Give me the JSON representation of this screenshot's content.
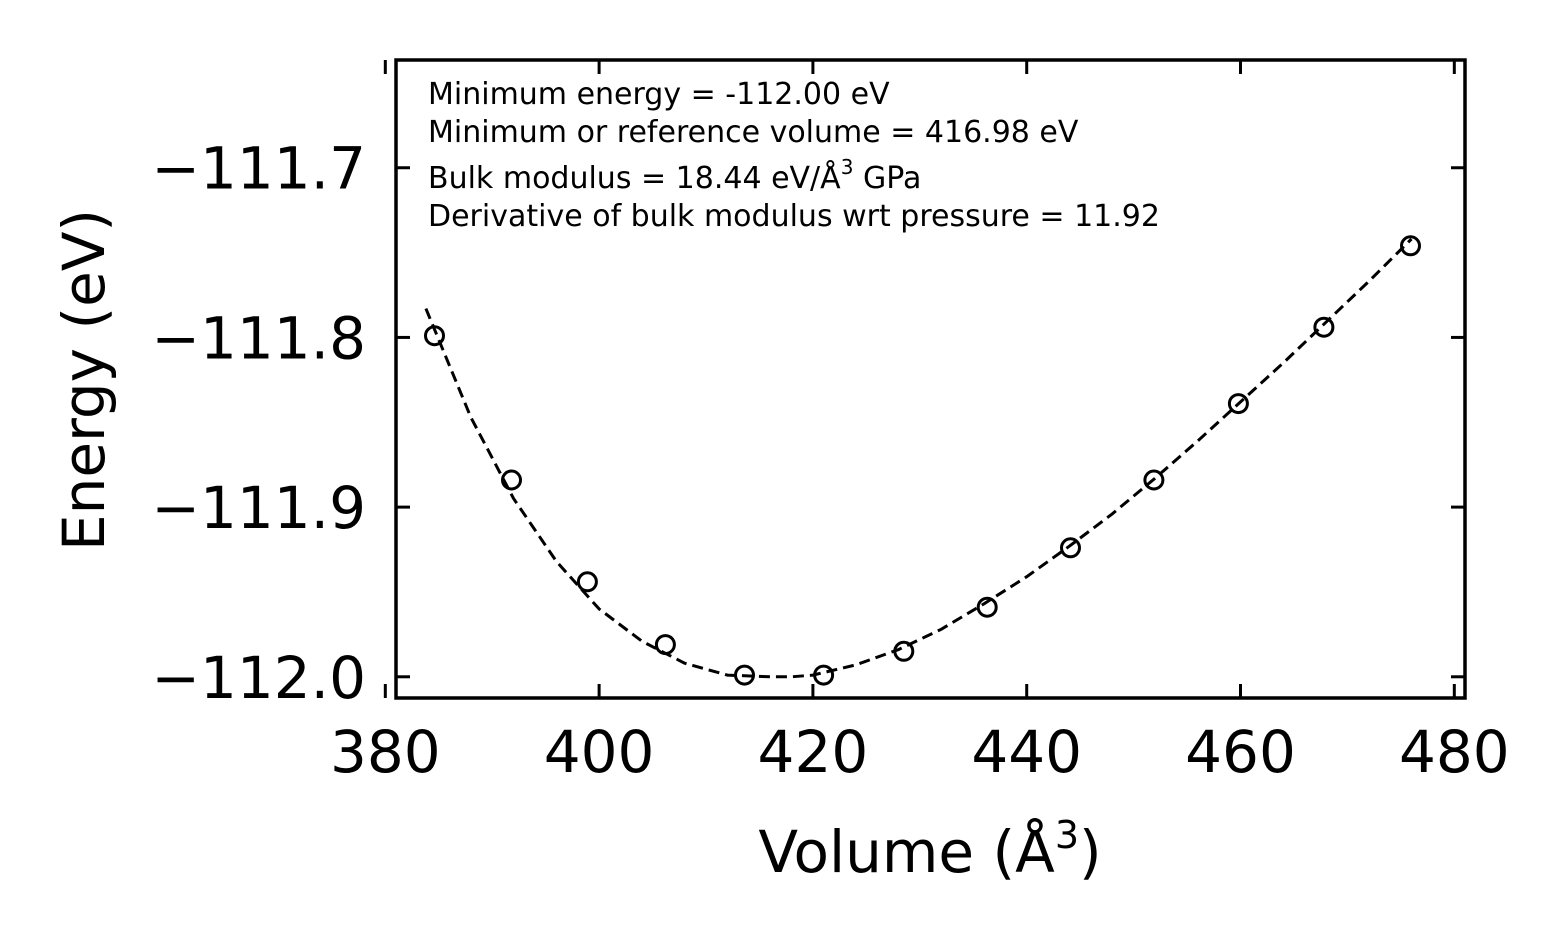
{
  "chart_data": {
    "type": "scatter",
    "xlabel": "Volume (Å",
    "xlabel_sup": "3",
    "xlabel_tail": ")",
    "ylabel": "Energy (eV)",
    "xlim": [
      381,
      481
    ],
    "ylim": [
      -112.0125,
      -111.6365
    ],
    "xticks": [
      380,
      400,
      420,
      440,
      460,
      480
    ],
    "xtick_labels": [
      "380",
      "400",
      "420",
      "440",
      "460",
      "480"
    ],
    "yticks": [
      -111.7,
      -111.8,
      -111.9,
      -112.0
    ],
    "ytick_labels": [
      "−111.7",
      "−111.8",
      "−111.9",
      "−112.0"
    ],
    "series": [
      {
        "name": "data",
        "style": "open-circles",
        "x": [
          384.6,
          391.8,
          398.9,
          406.2,
          413.6,
          421.0,
          428.5,
          436.3,
          444.1,
          451.9,
          459.8,
          467.8,
          475.9
        ],
        "y": [
          -111.799,
          -111.884,
          -111.944,
          -111.981,
          -111.999,
          -111.999,
          -111.985,
          -111.959,
          -111.924,
          -111.884,
          -111.839,
          -111.794,
          -111.746
        ]
      },
      {
        "name": "fit",
        "style": "dashed-line",
        "x": [
          383.8,
          388,
          392,
          396,
          400,
          404,
          408,
          412,
          416,
          418,
          420,
          424,
          428,
          432,
          436,
          440,
          444,
          448,
          452,
          456,
          460,
          464,
          468,
          472,
          476
        ],
        "y": [
          -111.783,
          -111.847,
          -111.895,
          -111.932,
          -111.96,
          -111.979,
          -111.992,
          -111.999,
          -112.0,
          -112.0,
          -111.999,
          -111.993,
          -111.984,
          -111.972,
          -111.957,
          -111.941,
          -111.923,
          -111.904,
          -111.883,
          -111.861,
          -111.838,
          -111.815,
          -111.791,
          -111.767,
          -111.742
        ]
      }
    ],
    "annotations": [
      "Minimum energy = -112.00 eV",
      "Minimum or reference volume = 416.98 eV",
      "Bulk modulus = 18.44 eV/Å",
      "3",
      " GPa",
      "Derivative of bulk modulus wrt pressure = 11.92"
    ],
    "grid": false,
    "legend": "none"
  }
}
